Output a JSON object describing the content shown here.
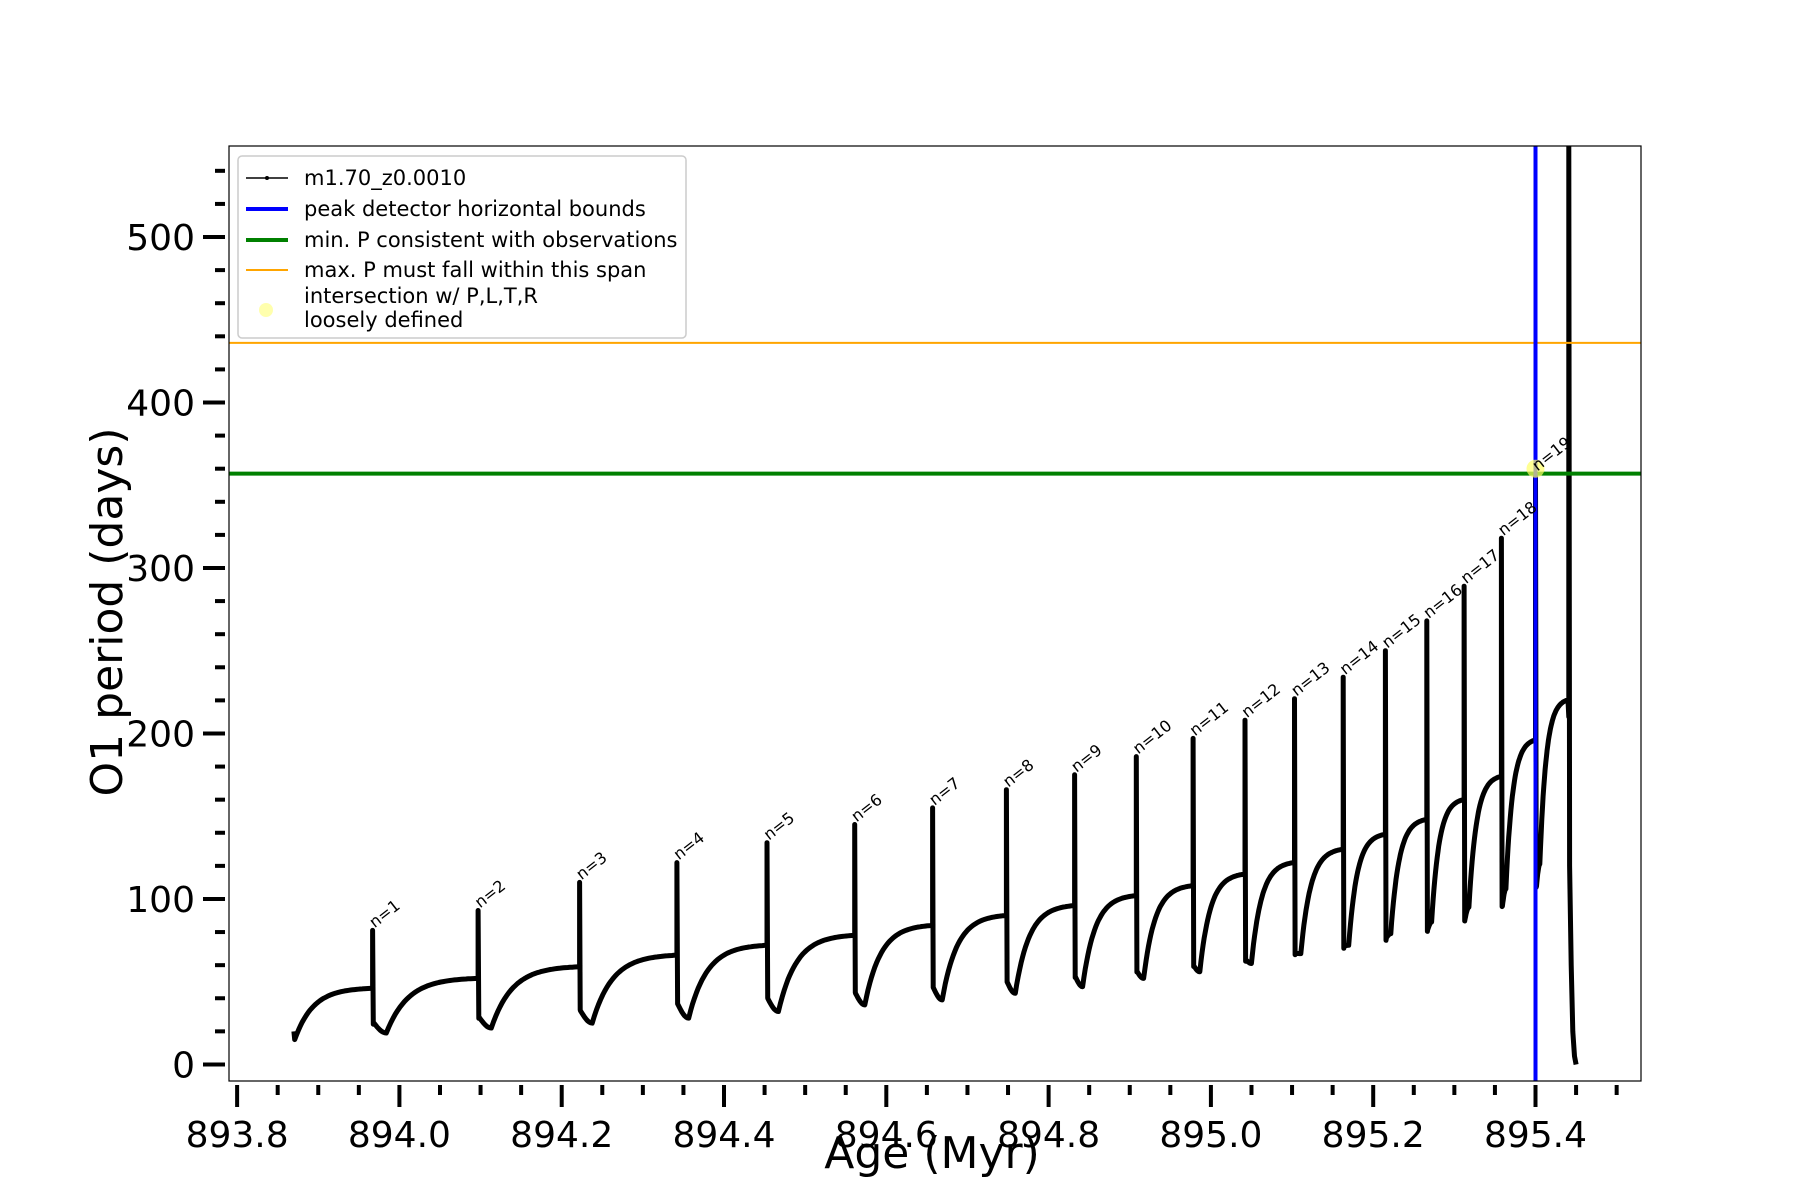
{
  "chart_data": {
    "type": "line",
    "xlabel": "Age (Myr)",
    "ylabel": "O1 period (days)",
    "xlim": [
      893.79,
      895.53
    ],
    "ylim": [
      -10,
      555
    ],
    "x_ticks": [
      893.8,
      894.0,
      894.2,
      894.4,
      894.6,
      894.8,
      895.0,
      895.2,
      895.4
    ],
    "x_tick_labels": [
      "893.8",
      "894.0",
      "894.2",
      "894.4",
      "894.6",
      "894.8",
      "895.0",
      "895.2",
      "895.4"
    ],
    "x_minor_step": 0.05,
    "y_ticks": [
      0,
      100,
      200,
      300,
      400,
      500
    ],
    "y_tick_labels": [
      "0",
      "100",
      "200",
      "300",
      "400",
      "500"
    ],
    "y_minor_step": 20,
    "grid": false,
    "legend_position": "top-left",
    "legend": [
      {
        "label": "m1.70_z0.0010",
        "color": "#000000",
        "kind": "line-marker"
      },
      {
        "label": "peak detector horizontal bounds",
        "color": "#0000ff",
        "kind": "thick-line"
      },
      {
        "label": "min. P consistent with observations",
        "color": "#008000",
        "kind": "thick-line"
      },
      {
        "label": "max. P must fall within this span",
        "color": "#ffa500",
        "kind": "thin-line"
      },
      {
        "label": "intersection w/ P,L,T,R",
        "label2": "loosely defined",
        "color": "#ffff99",
        "kind": "dot"
      }
    ],
    "hlines": [
      {
        "name": "min. P consistent with observations",
        "y": 357,
        "color": "#008000"
      },
      {
        "name": "max. P must fall within this span",
        "y": 436,
        "color": "#ffa500"
      }
    ],
    "vlines": [
      {
        "name": "peak detector horizontal bounds",
        "x": 895.4,
        "color": "#0000ff"
      }
    ],
    "intersection": {
      "x": 895.4,
      "y": 360,
      "color": "#ffff66"
    },
    "start": {
      "x": 893.87,
      "y": 20
    },
    "pulses": [
      {
        "n": "n=1",
        "x": 893.967,
        "peak": 81,
        "pre": 46,
        "min": 19
      },
      {
        "n": "n=2",
        "x": 894.097,
        "peak": 93,
        "pre": 52,
        "min": 22
      },
      {
        "n": "n=3",
        "x": 894.222,
        "peak": 110,
        "pre": 59,
        "min": 25
      },
      {
        "n": "n=4",
        "x": 894.342,
        "peak": 122,
        "pre": 66,
        "min": 28
      },
      {
        "n": "n=5",
        "x": 894.453,
        "peak": 134,
        "pre": 72,
        "min": 32
      },
      {
        "n": "n=6",
        "x": 894.561,
        "peak": 145,
        "pre": 78,
        "min": 36
      },
      {
        "n": "n=7",
        "x": 894.657,
        "peak": 155,
        "pre": 84,
        "min": 39
      },
      {
        "n": "n=8",
        "x": 894.748,
        "peak": 166,
        "pre": 90,
        "min": 43
      },
      {
        "n": "n=9",
        "x": 894.832,
        "peak": 175,
        "pre": 96,
        "min": 47
      },
      {
        "n": "n=10",
        "x": 894.908,
        "peak": 186,
        "pre": 102,
        "min": 52
      },
      {
        "n": "n=11",
        "x": 894.978,
        "peak": 197,
        "pre": 108,
        "min": 56
      },
      {
        "n": "n=12",
        "x": 895.042,
        "peak": 208,
        "pre": 115,
        "min": 61
      },
      {
        "n": "n=13",
        "x": 895.103,
        "peak": 221,
        "pre": 122,
        "min": 67
      },
      {
        "n": "n=14",
        "x": 895.163,
        "peak": 234,
        "pre": 130,
        "min": 72
      },
      {
        "n": "n=15",
        "x": 895.215,
        "peak": 250,
        "pre": 139,
        "min": 79
      },
      {
        "n": "n=16",
        "x": 895.266,
        "peak": 268,
        "pre": 148,
        "min": 86
      },
      {
        "n": "n=17",
        "x": 895.312,
        "peak": 289,
        "pre": 160,
        "min": 95
      },
      {
        "n": "n=18",
        "x": 895.358,
        "peak": 318,
        "pre": 174,
        "min": 106
      },
      {
        "n": "n=19",
        "x": 895.4,
        "peak": 357,
        "pre": 196,
        "min": 121
      }
    ],
    "final_pulse": {
      "x": 895.441,
      "peak": 555,
      "pre": 220
    },
    "end": {
      "x": 895.45,
      "y": 0
    }
  }
}
